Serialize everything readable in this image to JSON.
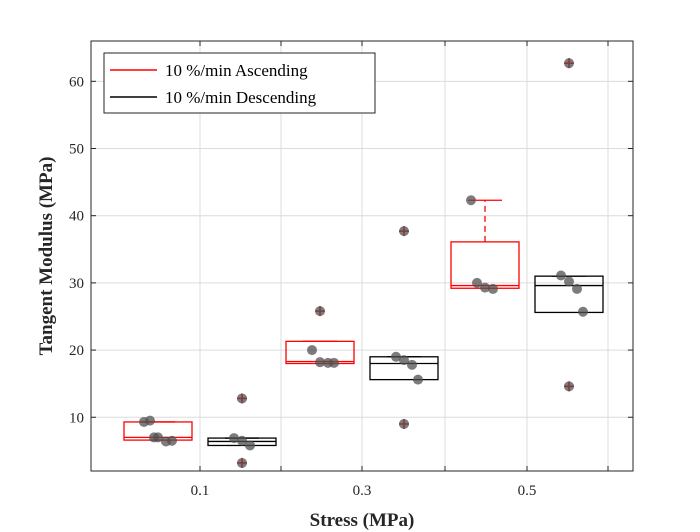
{
  "chart_data": {
    "type": "box",
    "xlabel": "Stress (MPa)",
    "ylabel": "Tangent Modulus (MPa)",
    "ylim": [
      2,
      66
    ],
    "yticks": [
      10,
      20,
      30,
      40,
      50,
      60
    ],
    "xticks": [
      "0.1",
      "0.3",
      "0.5"
    ],
    "grid": true,
    "legend_position": "top-left",
    "colors": {
      "ascending": "#ff0000",
      "descending": "#000000",
      "points": "#555555"
    },
    "series": [
      {
        "name": "10 %/min Ascending",
        "color": "#ff0000",
        "groups": [
          {
            "x": "0.1",
            "q1": 6.6,
            "median": 7.0,
            "q3": 9.3,
            "whisker_low": 6.6,
            "whisker_high": 9.3,
            "outliers": [],
            "points": [
              9.3,
              9.5,
              7.0,
              6.4,
              6.5,
              7.0
            ]
          },
          {
            "x": "0.3",
            "q1": 18.0,
            "median": 18.3,
            "q3": 21.3,
            "whisker_low": 18.0,
            "whisker_high": 21.3,
            "outliers": [
              25.8
            ],
            "points": [
              25.8,
              20.0,
              18.2,
              18.1,
              18.1
            ]
          },
          {
            "x": "0.5",
            "q1": 29.2,
            "median": 29.6,
            "q3": 36.1,
            "whisker_low": 29.2,
            "whisker_high": 42.3,
            "outliers": [],
            "points": [
              42.3,
              30.0,
              29.3,
              29.1
            ]
          }
        ]
      },
      {
        "name": "10 %/min Descending",
        "color": "#000000",
        "groups": [
          {
            "x": "0.1",
            "q1": 5.8,
            "median": 6.4,
            "q3": 6.9,
            "whisker_low": 5.8,
            "whisker_high": 6.9,
            "outliers": [
              12.8,
              3.2
            ],
            "points": [
              12.8,
              6.9,
              6.5,
              5.8,
              3.2
            ]
          },
          {
            "x": "0.3",
            "q1": 15.6,
            "median": 18.0,
            "q3": 19.0,
            "whisker_low": 15.6,
            "whisker_high": 19.0,
            "outliers": [
              37.7,
              9.0
            ],
            "points": [
              37.7,
              19.0,
              18.5,
              17.8,
              15.6,
              9.0
            ]
          },
          {
            "x": "0.5",
            "q1": 25.6,
            "median": 29.6,
            "q3": 31.0,
            "whisker_low": 25.6,
            "whisker_high": 31.0,
            "outliers": [
              62.7,
              14.6
            ],
            "points": [
              62.7,
              31.1,
              30.2,
              29.1,
              25.7,
              14.6
            ]
          }
        ]
      }
    ]
  }
}
